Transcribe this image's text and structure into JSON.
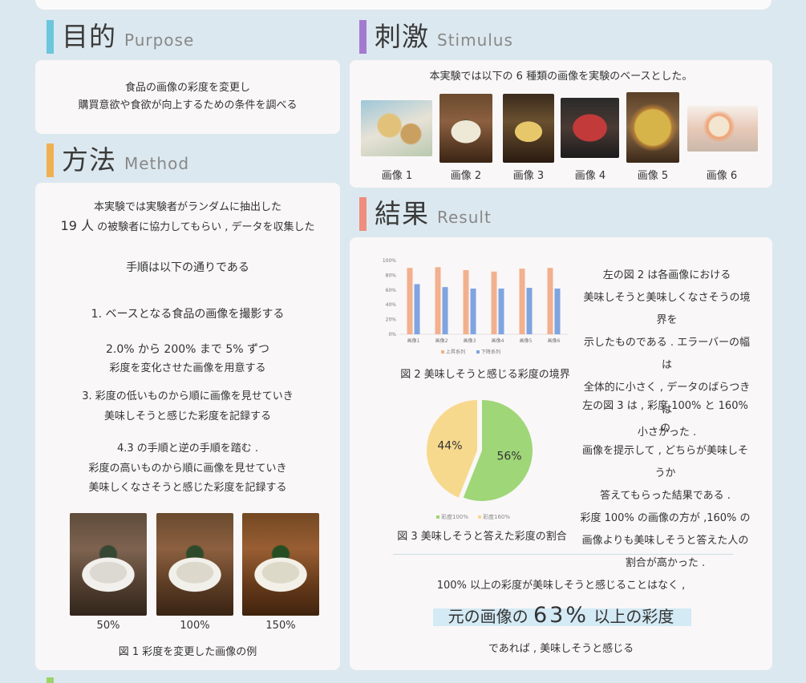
{
  "colors": {
    "purpose_bar": "#6cc6dc",
    "stimulus_bar": "#a47ad0",
    "method_bar": "#f0b050",
    "result_bar": "#ef8d7e",
    "next_bar": "#9bd36a",
    "bar_up": "#f2b08e",
    "bar_down": "#7fa4e0",
    "pie_100": "#9fd678",
    "pie_160": "#f7d98e",
    "highlight": "#d4eaf5"
  },
  "purpose": {
    "title_jp": "目的",
    "title_en": "Purpose",
    "line1": "食品の画像の彩度を変更し",
    "line2": "購買意欲や食欲が向上するための条件を調べる"
  },
  "stimulus": {
    "title_jp": "刺激",
    "title_en": "Stimulus",
    "intro": "本実験では以下の 6 種類の画像を実験のベースとした。",
    "images": [
      "画像 1",
      "画像 2",
      "画像 3",
      "画像 4",
      "画像 5",
      "画像 6"
    ]
  },
  "method": {
    "title_jp": "方法",
    "title_en": "Method",
    "intro1": "本実験では実験者がランダムに抽出した",
    "intro2_num": "19 人",
    "intro2_rest": "の被験者に協力してもらい , データを収集した",
    "procedure_title": "手順は以下の通りである",
    "step1": "1. ベースとなる食品の画像を撮影する",
    "step2a": "2.0% から 200% まで 5% ずつ",
    "step2b": "彩度を変化させた画像を用意する",
    "step3a": "3. 彩度の低いものから順に画像を見せていき",
    "step3b": "美味しそうと感じた彩度を記録する",
    "step4a": "4.3 の手順と逆の手順を踏む .",
    "step4b": "彩度の高いものから順に画像を見せていき",
    "step4c": "美味しくなさそうと感じた彩度を記録する",
    "photo_labels": [
      "50%",
      "100%",
      "150%"
    ],
    "fig1_caption": "図 1 彩度を変更した画像の例"
  },
  "result": {
    "title_jp": "結果",
    "title_en": "Result",
    "fig2_caption": "図 2 美味しそうと感じる彩度の境界",
    "fig2_text": [
      "左の図 2 は各画像における",
      "美味しそうと美味しくなさそうの境界を",
      "示したものである . エラーバーの幅は",
      "全体的に小さく , データのばらつきは",
      "小さかった ."
    ],
    "fig3_caption": "図 3 美味しそうと答えた彩度の割合",
    "fig3_text": [
      "左の図 3 は , 彩度 100% と 160% の",
      "画像を提示して , どちらが美味しそうか",
      "答えてもらった結果である .",
      "彩度 100% の画像の方が ,160% の",
      "画像よりも美味しそうと答えた人の",
      "割合が高かった ."
    ],
    "conclusion1": "100% 以上の彩度が美味しそうと感じることはなく ,",
    "conclusion2_pre": "元の画像の",
    "conclusion2_num": "63%",
    "conclusion2_post": "以上の彩度",
    "conclusion3": "であれば , 美味しそうと感じる"
  },
  "chart_data": [
    {
      "type": "bar",
      "categories": [
        "画像1",
        "画像2",
        "画像3",
        "画像4",
        "画像5",
        "画像6"
      ],
      "series": [
        {
          "name": "上昇系列",
          "values": [
            90,
            91,
            87,
            85,
            89,
            90
          ]
        },
        {
          "name": "下降系列",
          "values": [
            68,
            64,
            62,
            62,
            63,
            62
          ]
        }
      ],
      "ylim": [
        0,
        100
      ],
      "yticks": [
        "0%",
        "20%",
        "40%",
        "60%",
        "80%",
        "100%"
      ],
      "legend": "bottom",
      "title": "図 2 美味しそうと感じる彩度の境界"
    },
    {
      "type": "pie",
      "labels": [
        "彩度100%",
        "彩度160%"
      ],
      "values": [
        56,
        44
      ],
      "value_labels": [
        "56%",
        "44%"
      ],
      "legend": "bottom",
      "title": "図 3 美味しそうと答えた彩度の割合"
    }
  ]
}
